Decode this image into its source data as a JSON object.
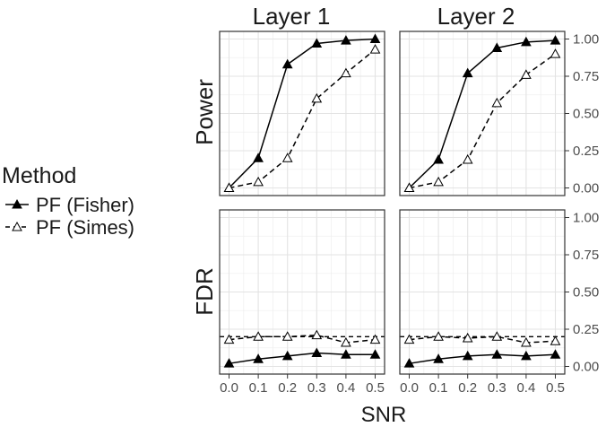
{
  "chart_data": {
    "type": "line",
    "facet_columns": [
      "Layer 1",
      "Layer 2"
    ],
    "facet_rows": [
      "Power",
      "FDR"
    ],
    "xlabel": "SNR",
    "x": [
      0.0,
      0.1,
      0.2,
      0.3,
      0.4,
      0.5
    ],
    "x_tick_labels": [
      "0.0",
      "0.1",
      "0.2",
      "0.3",
      "0.4",
      "0.5"
    ],
    "xlim": [
      0.0,
      0.5
    ],
    "ylim": [
      0.0,
      1.0
    ],
    "y_tick_values": [
      0.0,
      0.25,
      0.5,
      0.75,
      1.0
    ],
    "y_tick_labels": [
      "0.00",
      "0.25",
      "0.50",
      "0.75",
      "1.00"
    ],
    "reference_line": {
      "metric": "FDR",
      "y": 0.2,
      "style": "dashed"
    },
    "grid": true,
    "legend": {
      "title": "Method",
      "position": "left"
    },
    "series": [
      {
        "name": "PF (Fisher)",
        "marker": "filled-triangle",
        "line": "solid",
        "color": "#000000"
      },
      {
        "name": "PF (Simes)",
        "marker": "open-triangle",
        "line": "dashed",
        "color": "#000000"
      }
    ],
    "panels": [
      {
        "column": "Layer 1",
        "row": "Power",
        "values": {
          "PF (Fisher)": [
            0.0,
            0.2,
            0.83,
            0.97,
            0.99,
            1.0
          ],
          "PF (Simes)": [
            0.0,
            0.04,
            0.2,
            0.6,
            0.77,
            0.93
          ]
        }
      },
      {
        "column": "Layer 2",
        "row": "Power",
        "values": {
          "PF (Fisher)": [
            0.0,
            0.19,
            0.77,
            0.94,
            0.98,
            0.99
          ],
          "PF (Simes)": [
            0.0,
            0.04,
            0.19,
            0.57,
            0.76,
            0.9
          ]
        }
      },
      {
        "column": "Layer 1",
        "row": "FDR",
        "values": {
          "PF (Fisher)": [
            0.02,
            0.05,
            0.07,
            0.09,
            0.08,
            0.08
          ],
          "PF (Simes)": [
            0.18,
            0.2,
            0.2,
            0.21,
            0.16,
            0.18
          ]
        }
      },
      {
        "column": "Layer 2",
        "row": "FDR",
        "values": {
          "PF (Fisher)": [
            0.02,
            0.05,
            0.07,
            0.08,
            0.07,
            0.08
          ],
          "PF (Simes)": [
            0.18,
            0.2,
            0.19,
            0.2,
            0.16,
            0.17
          ]
        }
      }
    ]
  }
}
